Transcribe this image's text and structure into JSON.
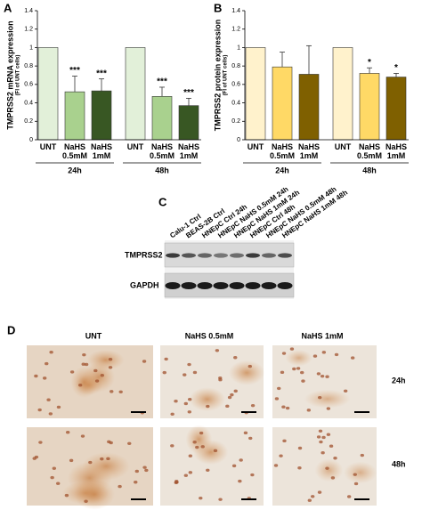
{
  "chart_data": [
    {
      "type": "bar",
      "panel": "A",
      "ylabel": "TMPRSS2 mRNA expression",
      "ylabel_sub": "(FI of UNT cells)",
      "categories": [
        "UNT",
        "NaHS 0.5mM",
        "NaHS 1mM",
        "UNT",
        "NaHS 0.5mM",
        "NaHS 1mM"
      ],
      "groups": [
        "24h",
        "48h"
      ],
      "values": [
        1,
        0.52,
        0.53,
        1,
        0.47,
        0.37
      ],
      "errors": [
        null,
        0.17,
        0.13,
        null,
        0.1,
        0.08
      ],
      "annotations": [
        null,
        "***",
        "***",
        null,
        "***",
        "***"
      ],
      "colors": [
        "#e2f0d9",
        "#a9d18e",
        "#385723",
        "#e2f0d9",
        "#a9d18e",
        "#385723"
      ],
      "ylim": [
        0,
        1.4
      ],
      "yticks": [
        0,
        0.2,
        0.4,
        0.6,
        0.8,
        1,
        1.2,
        1.4
      ]
    },
    {
      "type": "bar",
      "panel": "B",
      "ylabel": "TMPRSS2 protein expression",
      "ylabel_sub": "(FI of UNT cells)",
      "categories": [
        "UNT",
        "NaHS 0.5mM",
        "NaHS 1mM",
        "UNT",
        "NaHS 0.5mM",
        "NaHS 1mM"
      ],
      "groups": [
        "24h",
        "48h"
      ],
      "values": [
        1,
        0.79,
        0.71,
        1,
        0.72,
        0.68
      ],
      "errors": [
        null,
        0.16,
        0.31,
        null,
        0.06,
        0.04
      ],
      "annotations": [
        null,
        null,
        null,
        null,
        "*",
        "*"
      ],
      "colors": [
        "#fff2cc",
        "#ffd966",
        "#7f6000",
        "#fff2cc",
        "#ffd966",
        "#7f6000"
      ],
      "ylim": [
        0,
        1.4
      ],
      "yticks": [
        0,
        0.2,
        0.4,
        0.6,
        0.8,
        1,
        1.2,
        1.4
      ]
    }
  ],
  "blot": {
    "panel": "C",
    "lanes": [
      "Calu-1 Ctrl",
      "BEAS-2B Ctrl",
      "HNEpC Ctrl 24h",
      "HNEpC NaHS 0.5mM 24h",
      "HNEpC NaHS 1mM 24h",
      "HNEpC Ctrl 48h",
      "HNEpC NaHS 0.5mM 48h",
      "HNEpC NaHS 1mM 48h"
    ],
    "rows": [
      "TMPRSS2",
      "GAPDH"
    ]
  },
  "micrographs": {
    "panel": "D",
    "columns": [
      "UNT",
      "NaHS 0.5mM",
      "NaHS 1mM"
    ],
    "rows": [
      "24h",
      "48h"
    ]
  }
}
